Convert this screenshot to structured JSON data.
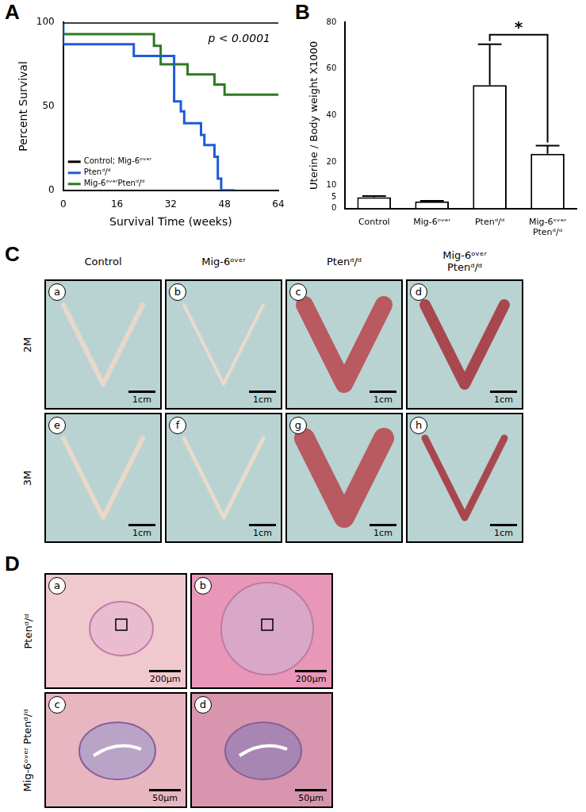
{
  "chart_data": [
    {
      "type": "line",
      "x_label": "Survival Time (weeks)",
      "y_label": "Percent Survival",
      "xlim": [
        0,
        64
      ],
      "xticks": [
        0,
        16,
        32,
        48,
        64
      ],
      "ylim": [
        0,
        100
      ],
      "yticks": [
        0,
        50,
        100
      ],
      "grid": false,
      "legend": "lower left",
      "line_style": "step",
      "annotations": [
        {
          "text": "p < 0.0001"
        }
      ],
      "series": [
        {
          "name": "Control; Mig-6ᵒᵛᵉʳ",
          "color": "#000000",
          "x": [
            0,
            64
          ],
          "values": [
            100,
            100
          ]
        },
        {
          "name": "Ptenᵈ/ᵈ",
          "color": "#1f5bd6",
          "x": [
            0,
            21,
            33,
            35,
            36,
            41,
            42,
            45,
            46,
            47,
            51
          ],
          "values": [
            100,
            87,
            80,
            53,
            47,
            40,
            33,
            27,
            20,
            7,
            0
          ]
        },
        {
          "name": "Mig-6ᵒᵛᵉʳPtenᵈ/ᵈ",
          "color": "#2e7a22",
          "x": [
            0,
            27,
            29,
            37,
            45,
            48,
            49,
            64
          ],
          "values": [
            100,
            93,
            86,
            75,
            69,
            63,
            57,
            57
          ]
        }
      ]
    },
    {
      "type": "bar",
      "y_label": "Uterine / Body weight X1000",
      "categories": [
        "Control",
        "Mig-6ᵒᵛᵉʳ",
        "Ptenᵈ/ᵈ",
        "Mig-6ᵒᵛᵉʳ Ptenᵈ/ᵈ"
      ],
      "values": [
        4.8,
        3.0,
        53,
        23.5
      ],
      "errors": [
        0.5,
        0.3,
        17.5,
        3.5
      ],
      "color": "#000000",
      "ylim": [
        0,
        80
      ],
      "yticks": [
        0,
        5,
        10,
        20,
        40,
        60,
        80
      ],
      "grid": false,
      "annotations": [
        {
          "text": "*",
          "from": "Ptenᵈ/ᵈ",
          "to": "Mig-6ᵒᵛᵉʳ Ptenᵈ/ᵈ"
        }
      ]
    }
  ],
  "figure": {
    "panels": [
      "A",
      "B",
      "C",
      "D"
    ],
    "C": {
      "columns": [
        "Control",
        "Mig-6ᵒᵛᵉʳ",
        "Ptenᵈ/ᵈ",
        "Mig-6ᵒᵛᵉʳ Ptenᵈ/ᵈ"
      ],
      "rows": [
        "2M",
        "3M"
      ],
      "cells": [
        [
          "a",
          "b",
          "c",
          "d"
        ],
        [
          "e",
          "f",
          "g",
          "h"
        ]
      ],
      "scale_bar": "1cm"
    },
    "D": {
      "rows": [
        "Ptenᵈ/ᵈ",
        "Mig-6ᵒᵛᵉʳ Ptenᵈ/ᵈ"
      ],
      "cells": [
        [
          {
            "id": "a",
            "scale_bar": "200µm"
          },
          {
            "id": "b",
            "scale_bar": "200µm"
          }
        ],
        [
          {
            "id": "c",
            "scale_bar": "50µm"
          },
          {
            "id": "d",
            "scale_bar": "50µm"
          }
        ]
      ]
    }
  }
}
